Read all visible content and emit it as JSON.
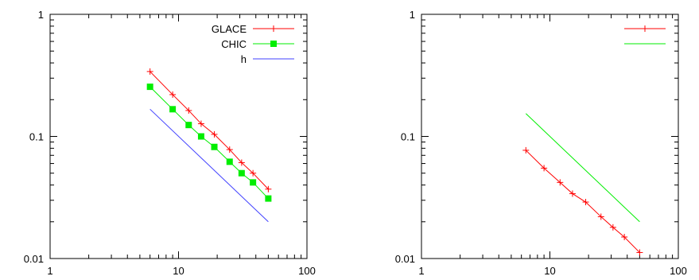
{
  "chart_data": [
    {
      "type": "line",
      "xscale": "log",
      "yscale": "log",
      "xlim": [
        1,
        100
      ],
      "ylim": [
        0.01,
        1
      ],
      "x_ticks": [
        "1",
        "10",
        "100"
      ],
      "y_ticks": [
        "0.01",
        "0.1",
        "1"
      ],
      "grid": false,
      "legend": "top-right",
      "series": [
        {
          "name": "GLACE",
          "color": "#ff0000",
          "marker": "plus",
          "x": [
            6,
            9,
            12,
            15,
            19,
            25,
            31,
            38,
            50
          ],
          "y": [
            0.34,
            0.22,
            0.163,
            0.127,
            0.104,
            0.078,
            0.061,
            0.05,
            0.037
          ]
        },
        {
          "name": "CHIC",
          "color": "#00ee00",
          "marker": "square",
          "x": [
            6,
            9,
            12,
            15,
            19,
            25,
            31,
            38,
            50
          ],
          "y": [
            0.255,
            0.167,
            0.124,
            0.1,
            0.082,
            0.062,
            0.05,
            0.042,
            0.031
          ]
        },
        {
          "name": "h",
          "color": "#4040ff",
          "marker": "none",
          "x": [
            6,
            50
          ],
          "y": [
            0.167,
            0.02
          ]
        }
      ]
    },
    {
      "type": "line",
      "xscale": "log",
      "yscale": "log",
      "xlim": [
        1,
        100
      ],
      "ylim": [
        0.01,
        1
      ],
      "x_ticks": [
        "1",
        "10",
        "100"
      ],
      "y_ticks": [
        "0.01",
        "0.1",
        "1"
      ],
      "grid": false,
      "legend": "top-right",
      "series": [
        {
          "name": "",
          "color": "#ff0000",
          "marker": "plus",
          "x": [
            6.5,
            9,
            12,
            15,
            19,
            25,
            31,
            38,
            50
          ],
          "y": [
            0.077,
            0.055,
            0.042,
            0.034,
            0.029,
            0.022,
            0.018,
            0.015,
            0.0112
          ]
        },
        {
          "name": "",
          "color": "#00ee00",
          "marker": "none",
          "x": [
            6.5,
            50
          ],
          "y": [
            0.154,
            0.02
          ]
        }
      ]
    }
  ]
}
